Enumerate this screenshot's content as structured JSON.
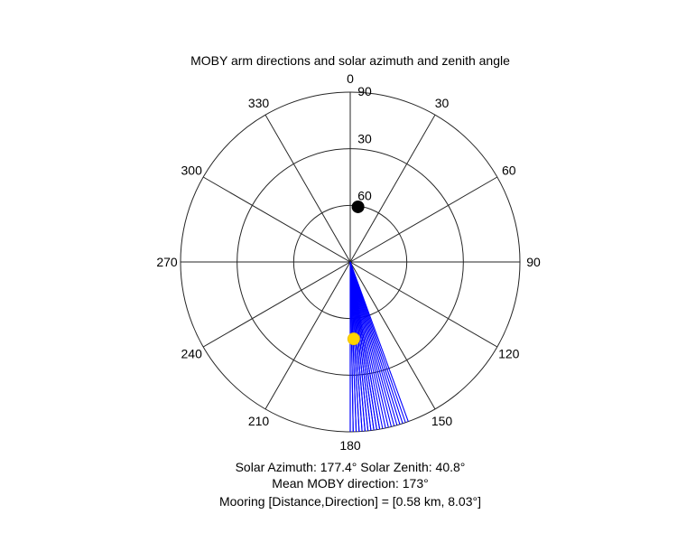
{
  "chart_data": {
    "type": "polar",
    "title": "MOBY arm directions and solar azimuth and zenith angle",
    "angle_ticks": [
      "0",
      "30",
      "60",
      "90",
      "120",
      "150",
      "180",
      "210",
      "240",
      "270",
      "300",
      "330"
    ],
    "angle_tick_values": [
      0,
      30,
      60,
      90,
      120,
      150,
      180,
      210,
      240,
      270,
      300,
      330
    ],
    "radial_ticks": [
      "90",
      "60",
      "30"
    ],
    "radial_tick_values": [
      90,
      60,
      30
    ],
    "radial_range": [
      0,
      90
    ],
    "radial_direction": "inverted",
    "angular_zero": "top",
    "angular_direction": "clockwise",
    "series": [
      {
        "kind": "rays",
        "color": "#0000ff",
        "angles": [
          171,
          172,
          173,
          174,
          175,
          176,
          177,
          178,
          179,
          180,
          168,
          167,
          166,
          165,
          164,
          163,
          162,
          161,
          160,
          170,
          169,
          180,
          179,
          178,
          177,
          176,
          175,
          174,
          173,
          172,
          171,
          170
        ]
      },
      {
        "kind": "marker",
        "color": "#ffd500",
        "angle": 177.4,
        "radius_value": 49.2
      },
      {
        "kind": "marker",
        "color": "#000000",
        "angle": 8.03,
        "radius_value": 60.5
      }
    ],
    "info_lines": [
      "Solar Azimuth: 177.4°    Solar Zenith: 40.8°",
      "Mean MOBY direction: 173°",
      "Mooring [Distance,Direction] = [0.58 km, 8.03°]"
    ]
  }
}
